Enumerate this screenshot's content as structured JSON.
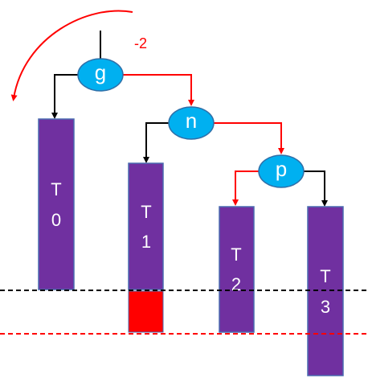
{
  "balance_factor": "-2",
  "nodes": [
    {
      "label": "g"
    },
    {
      "label": "n"
    },
    {
      "label": "p"
    }
  ],
  "subtrees": [
    {
      "letter": "T",
      "index": "0"
    },
    {
      "letter": "T",
      "index": "1"
    },
    {
      "letter": "T",
      "index": "2"
    },
    {
      "letter": "T",
      "index": "3"
    }
  ]
}
